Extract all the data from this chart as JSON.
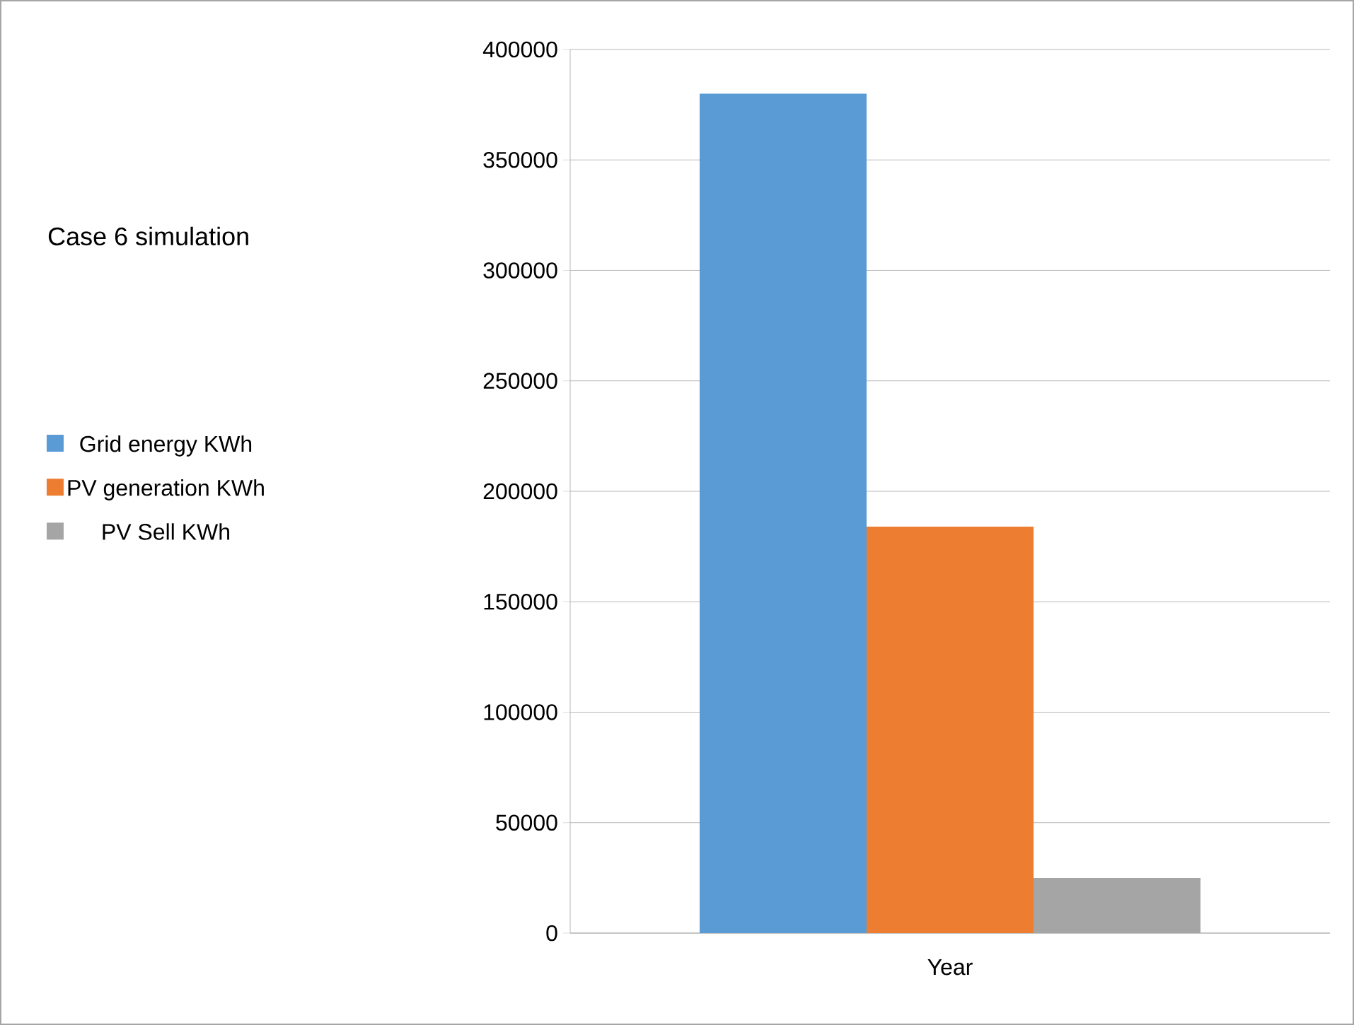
{
  "chart_data": {
    "type": "bar",
    "title": "Case 6 simulation",
    "categories": [
      "Year"
    ],
    "series": [
      {
        "name": "Grid energy KWh",
        "color": "#5b9bd5",
        "values": [
          380000
        ]
      },
      {
        "name": "PV generation KWh",
        "color": "#ed7d31",
        "values": [
          184000
        ]
      },
      {
        "name": "PV Sell KWh",
        "color": "#a5a5a5",
        "values": [
          25000
        ]
      }
    ],
    "ylim": [
      0,
      400000
    ],
    "yticks": [
      0,
      50000,
      100000,
      150000,
      200000,
      250000,
      300000,
      350000,
      400000
    ],
    "grid": "y",
    "legend": "left"
  }
}
